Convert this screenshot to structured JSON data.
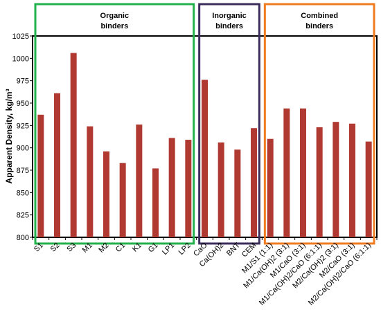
{
  "chart_data": {
    "type": "bar",
    "title": "",
    "xlabel": "",
    "ylabel": "Apparent Density, kg/m³",
    "ylim": [
      800,
      1025
    ],
    "yticks": [
      800,
      825,
      850,
      875,
      900,
      925,
      950,
      975,
      1000,
      1025
    ],
    "grid": false,
    "legend": "none",
    "bar_color": "#b03a32",
    "categories": [
      "S1",
      "S2",
      "S3",
      "M1",
      "M2",
      "C1",
      "K1",
      "G1",
      "LP1",
      "LP2",
      "CaO",
      "Ca(OH)2",
      "BNT",
      "CEM",
      "M1/S1 (1:1)",
      "M1/Ca(OH)2 (3:1)",
      "M1/CaO (3:1)",
      "M1/Ca(OH)2/CaO (6:1:1)",
      "M2/Ca(OH)2 (3:1)",
      "M2/CaO (3:1)",
      "M2/Ca(OH)2/CaO (6:1:1)"
    ],
    "values": [
      937,
      961,
      1006,
      924,
      896,
      883,
      926,
      877,
      911,
      909,
      976,
      906,
      898,
      922,
      910,
      944,
      944,
      923,
      929,
      927,
      907
    ],
    "groups": [
      {
        "label_lines": [
          "Organic",
          "binders"
        ],
        "start": 0,
        "end": 9,
        "color": "#22b14c"
      },
      {
        "label_lines": [
          "Inorganic",
          "binders"
        ],
        "start": 10,
        "end": 13,
        "color": "#3b2e5a"
      },
      {
        "label_lines": [
          "Combined",
          "binders"
        ],
        "start": 14,
        "end": 20,
        "color": "#f07c22"
      }
    ]
  }
}
